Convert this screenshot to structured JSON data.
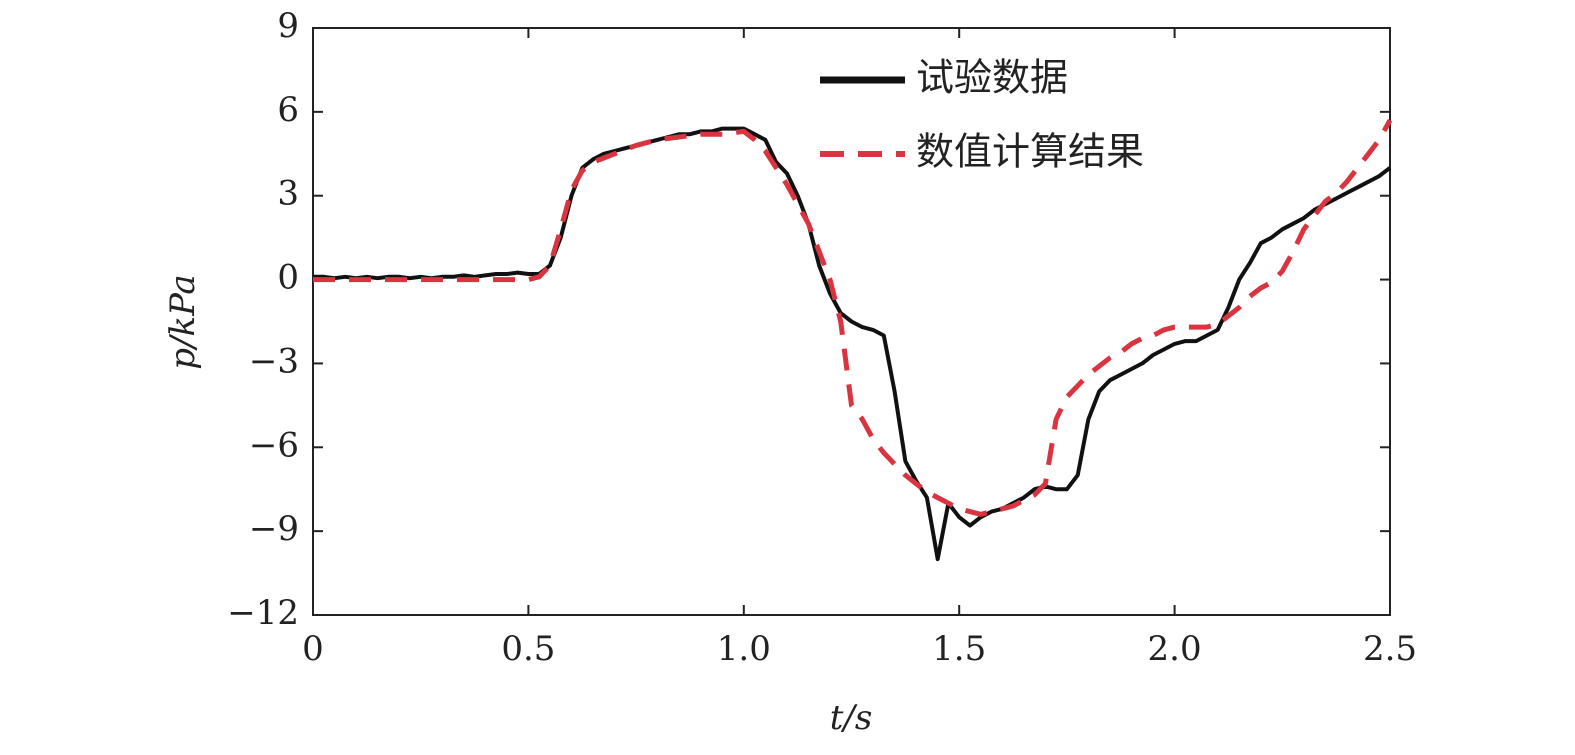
{
  "chart_data": {
    "type": "line",
    "xlabel": "t/s",
    "ylabel": "p/kPa",
    "xlim": [
      0,
      2.5
    ],
    "ylim": [
      -12,
      9
    ],
    "xticks": [
      0,
      0.5,
      {
        "value": 1,
        "label": "1.0"
      },
      1.5,
      {
        "value": 2,
        "label": "2.0"
      },
      2.5
    ],
    "yticks": [
      {
        "value": -12,
        "label": "−12"
      },
      {
        "value": -9,
        "label": "−9"
      },
      {
        "value": -6,
        "label": "−6"
      },
      {
        "value": -3,
        "label": "−3"
      },
      0,
      3,
      6,
      9
    ],
    "legend": "upper right",
    "x": [
      0,
      0.025,
      0.05,
      0.075,
      0.1,
      0.125,
      0.15,
      0.175,
      0.2,
      0.225,
      0.25,
      0.275,
      0.3,
      0.325,
      0.35,
      0.375,
      0.4,
      0.425,
      0.45,
      0.475,
      0.5,
      0.525,
      0.55,
      0.575,
      0.6,
      0.625,
      0.65,
      0.675,
      0.7,
      0.725,
      0.75,
      0.775,
      0.8,
      0.825,
      0.85,
      0.875,
      0.9,
      0.925,
      0.95,
      0.975,
      1,
      1.025,
      1.05,
      1.075,
      1.1,
      1.125,
      1.15,
      1.175,
      1.2,
      1.225,
      1.25,
      1.275,
      1.3,
      1.325,
      1.35,
      1.375,
      1.4,
      1.425,
      1.45,
      1.475,
      1.5,
      1.525,
      1.55,
      1.575,
      1.6,
      1.625,
      1.65,
      1.675,
      1.7,
      1.725,
      1.75,
      1.775,
      1.8,
      1.825,
      1.85,
      1.875,
      1.9,
      1.925,
      1.95,
      1.975,
      2,
      2.025,
      2.05,
      2.075,
      2.1,
      2.125,
      2.15,
      2.175,
      2.2,
      2.225,
      2.25,
      2.275,
      2.3,
      2.325,
      2.35,
      2.375,
      2.4,
      2.425,
      2.45,
      2.475,
      2.5
    ],
    "series": [
      {
        "name": "试验数据",
        "color": "#111111",
        "dash": false,
        "values": [
          0.1,
          0.1,
          0.05,
          0.1,
          0.05,
          0.1,
          0.05,
          0.1,
          0.1,
          0.05,
          0.1,
          0.05,
          0.1,
          0.1,
          0.15,
          0.1,
          0.15,
          0.2,
          0.2,
          0.25,
          0.2,
          0.2,
          0.5,
          1.5,
          3.0,
          4.0,
          4.3,
          4.5,
          4.6,
          4.7,
          4.8,
          4.9,
          5.0,
          5.1,
          5.2,
          5.2,
          5.3,
          5.3,
          5.4,
          5.4,
          5.4,
          5.2,
          5.0,
          4.2,
          3.8,
          3.0,
          2.0,
          0.5,
          -0.5,
          -1.2,
          -1.5,
          -1.7,
          -1.8,
          -2.0,
          -4.0,
          -6.5,
          -7.2,
          -7.8,
          -10.0,
          -8.0,
          -8.5,
          -8.8,
          -8.5,
          -8.3,
          -8.2,
          -8.0,
          -7.8,
          -7.5,
          -7.4,
          -7.5,
          -7.5,
          -7.0,
          -5.0,
          -4.0,
          -3.6,
          -3.4,
          -3.2,
          -3.0,
          -2.7,
          -2.5,
          -2.3,
          -2.2,
          -2.2,
          -2.0,
          -1.8,
          -1.0,
          0.0,
          0.6,
          1.3,
          1.5,
          1.8,
          2.0,
          2.2,
          2.5,
          2.7,
          2.9,
          3.1,
          3.3,
          3.5,
          3.7,
          4.0
        ]
      },
      {
        "name": "数值计算结果",
        "color": "#d9343f",
        "dash": true,
        "values": [
          0,
          0,
          0,
          0,
          0,
          0,
          0,
          0,
          0,
          0,
          0,
          0,
          0,
          0,
          0,
          0,
          0,
          0,
          0,
          0,
          0,
          0.1,
          0.5,
          1.8,
          3.2,
          3.9,
          4.2,
          4.35,
          4.5,
          4.65,
          4.8,
          4.9,
          5.0,
          5.05,
          5.1,
          5.15,
          5.2,
          5.2,
          5.2,
          5.25,
          5.3,
          5.0,
          4.6,
          4.0,
          3.4,
          2.7,
          2.0,
          1.0,
          0.0,
          -1.5,
          -4.5,
          -5.0,
          -5.7,
          -6.2,
          -6.6,
          -7.0,
          -7.3,
          -7.6,
          -7.8,
          -8.0,
          -8.2,
          -8.3,
          -8.4,
          -8.3,
          -8.2,
          -8.1,
          -7.9,
          -7.7,
          -7.3,
          -5.0,
          -4.2,
          -3.8,
          -3.4,
          -3.1,
          -2.8,
          -2.6,
          -2.3,
          -2.1,
          -2.0,
          -1.8,
          -1.7,
          -1.7,
          -1.7,
          -1.7,
          -1.6,
          -1.3,
          -1.0,
          -0.6,
          -0.3,
          -0.1,
          0.3,
          1.0,
          1.8,
          2.3,
          2.8,
          3.1,
          3.5,
          4.0,
          4.5,
          5.0,
          5.7
        ]
      }
    ]
  }
}
